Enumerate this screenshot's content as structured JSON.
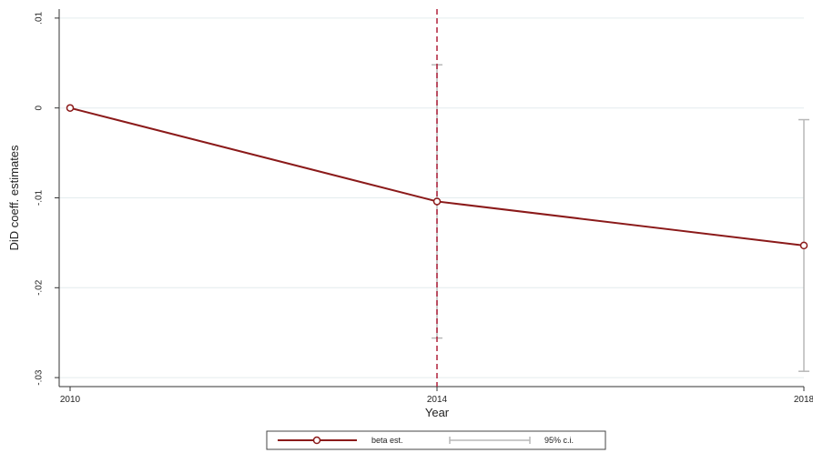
{
  "chart_data": {
    "type": "line",
    "title": "",
    "xlabel": "Year",
    "ylabel": "DiD coeff. estimates",
    "x": [
      2010,
      2014,
      2018
    ],
    "x_ticks": [
      "2010",
      "2014",
      "2018"
    ],
    "y_ticks": [
      ".01",
      "0",
      "-.01",
      "-.02",
      "-.03"
    ],
    "y_tick_values": [
      0.01,
      0,
      -0.01,
      -0.02,
      -0.03
    ],
    "ylim": [
      -0.031,
      0.011
    ],
    "xlim": [
      2010,
      2018
    ],
    "grid": true,
    "reference_line": {
      "x": 2014,
      "style": "dashed",
      "color": "#b0203a"
    },
    "series": [
      {
        "name": "beta est.",
        "values": [
          0.0,
          -0.0104,
          -0.0153
        ],
        "color": "#8b1a1a",
        "marker": "circle"
      }
    ],
    "confidence_intervals": {
      "name": "95% c.i.",
      "color": "#b8b8b8",
      "lower": [
        null,
        -0.0256,
        -0.0293
      ],
      "upper": [
        null,
        0.0048,
        -0.0013
      ]
    },
    "legend": {
      "placement": "bottom-center",
      "entries": [
        "beta est.",
        "95% c.i."
      ]
    }
  }
}
